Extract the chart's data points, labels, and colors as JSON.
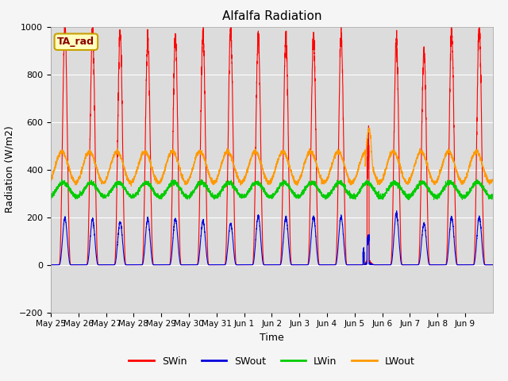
{
  "title": "Alfalfa Radiation",
  "ylabel": "Radiation (W/m2)",
  "xlabel": "Time",
  "ylim": [
    -200,
    1000
  ],
  "plot_bg": "#dcdcdc",
  "fig_bg": "#f5f5f5",
  "legend_label": "TA_rad",
  "colors": {
    "SWin": "#ff0000",
    "SWout": "#0000dd",
    "LWin": "#00cc00",
    "LWout": "#ff9900"
  },
  "x_tick_labels": [
    "May 25",
    "May 26",
    "May 27",
    "May 28",
    "May 29",
    "May 30",
    "May 31",
    "Jun 1",
    "Jun 2",
    "Jun 3",
    "Jun 4",
    "Jun 5",
    "Jun 6",
    "Jun 7",
    "Jun 8",
    "Jun 9"
  ],
  "n_days": 16,
  "SWin_peaks": [
    1000,
    990,
    980,
    950,
    960,
    965,
    990,
    960,
    960,
    950,
    960,
    590,
    935,
    905,
    985,
    1000
  ],
  "SWout_peaks": [
    195,
    190,
    180,
    193,
    193,
    183,
    173,
    205,
    200,
    200,
    200,
    130,
    215,
    175,
    200,
    200
  ],
  "LWin_base": 315,
  "LWin_amp": 30,
  "LWout_base": 410,
  "LWout_amp": 65,
  "anomaly_day": 11
}
